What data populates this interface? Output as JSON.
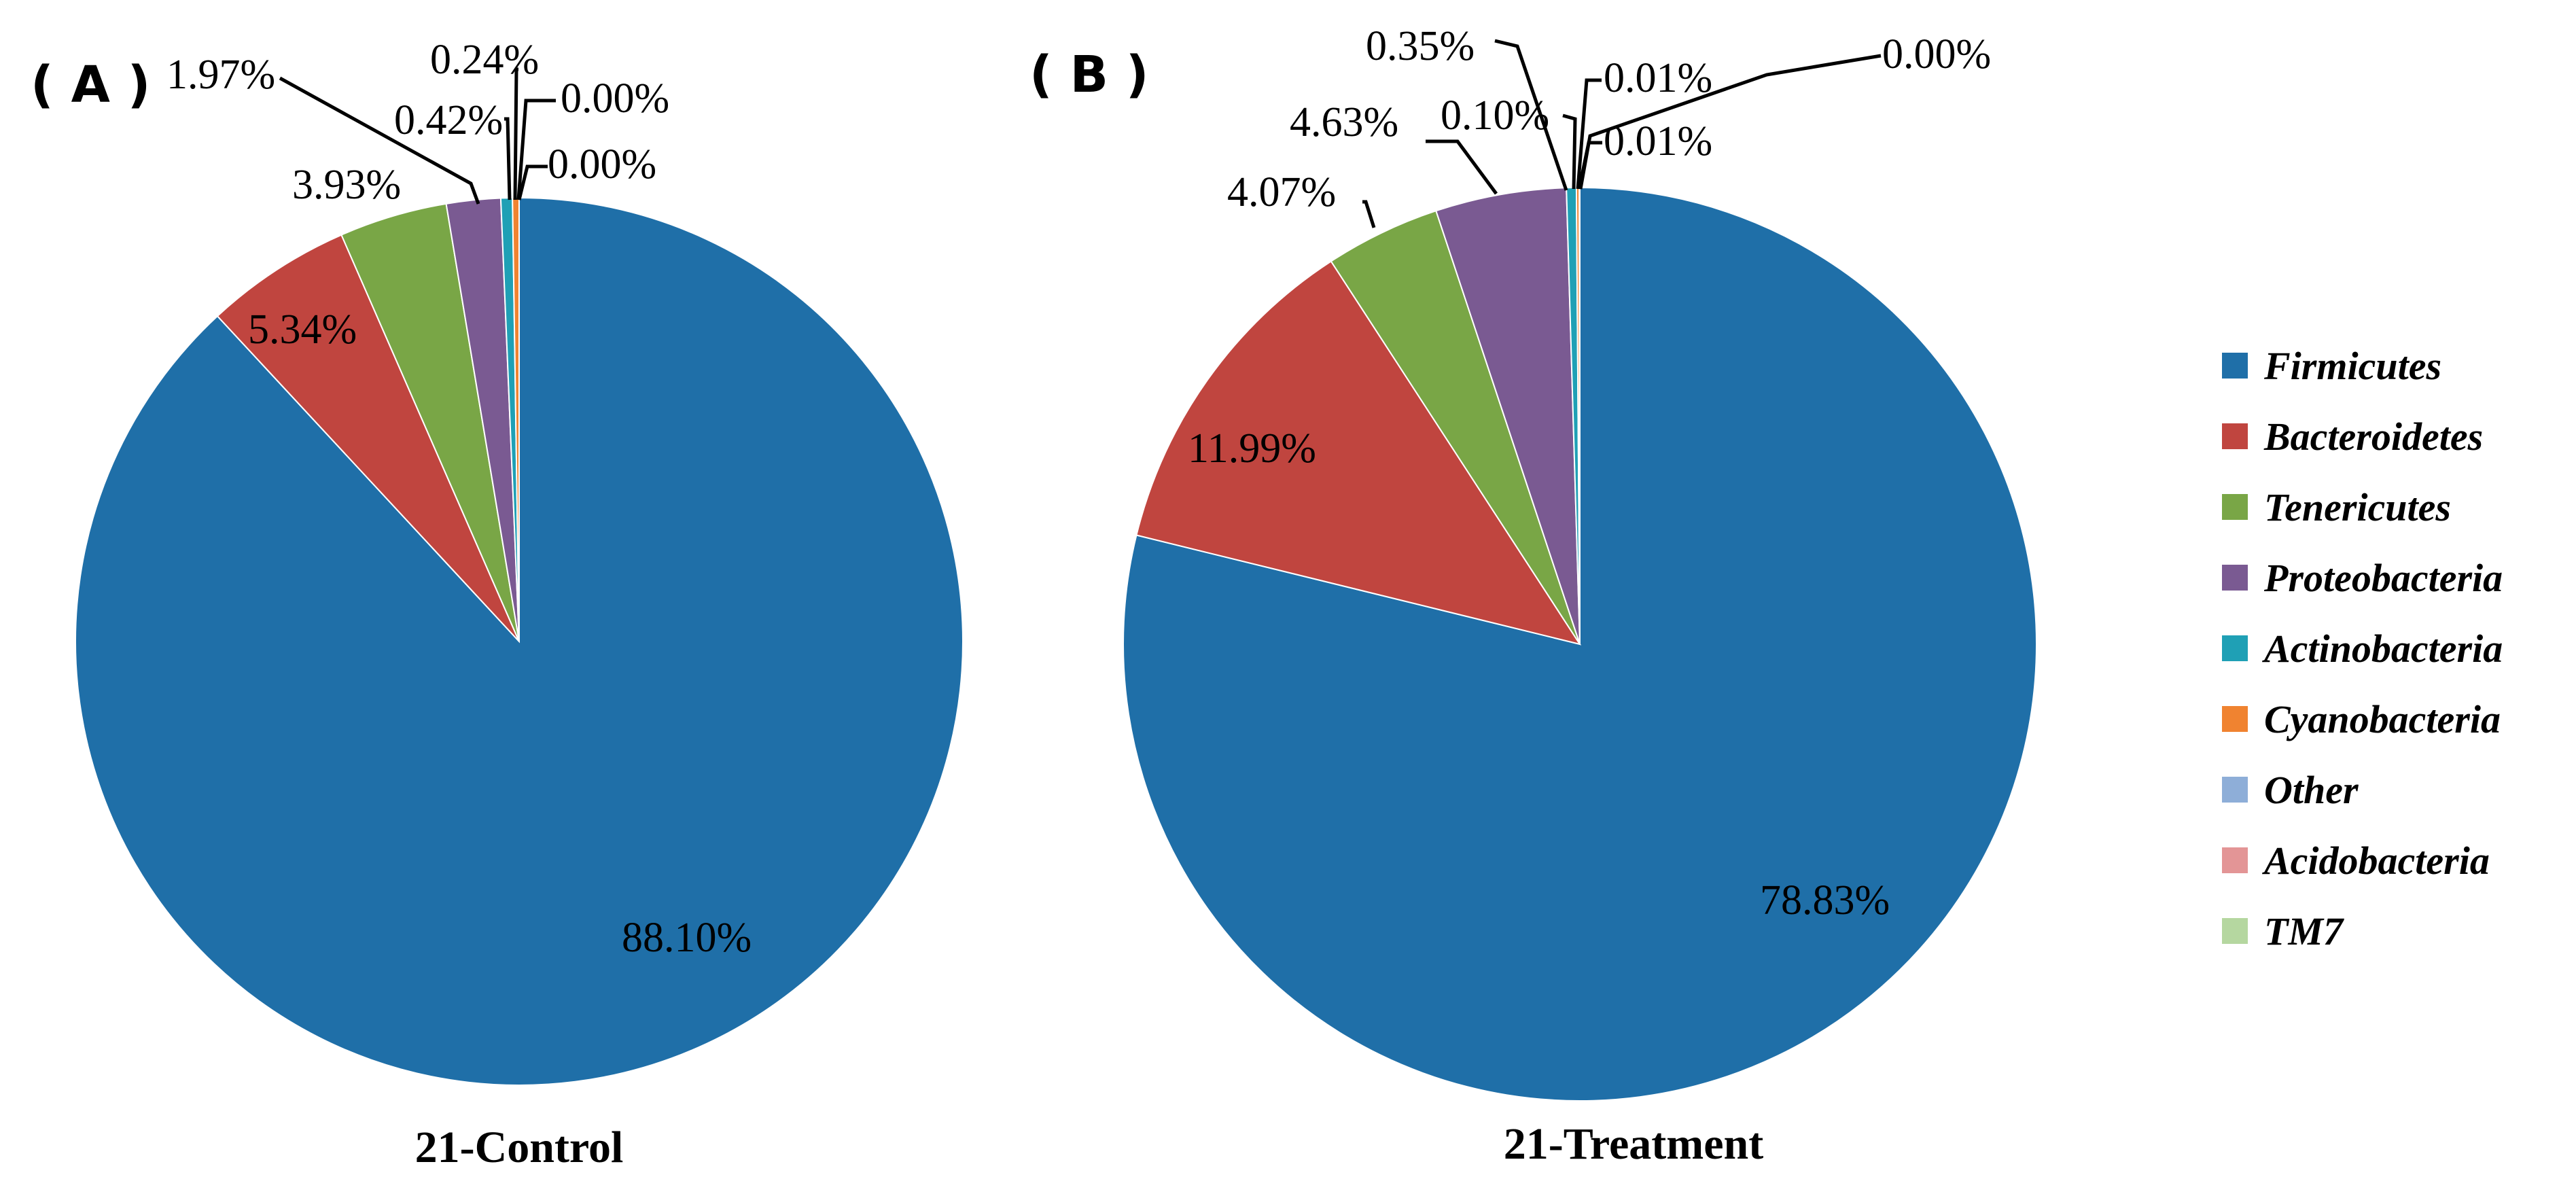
{
  "legend": {
    "items": [
      {
        "label": "Firmicutes",
        "color": "#1F6FA8"
      },
      {
        "label": "Bacteroidetes",
        "color": "#C0453F"
      },
      {
        "label": "Tenericutes",
        "color": "#79A646"
      },
      {
        "label": "Proteobacteria",
        "color": "#7A5A92"
      },
      {
        "label": "Actinobacteria",
        "color": "#1FA0B5"
      },
      {
        "label": "Cyanobacteria",
        "color": "#F08330"
      },
      {
        "label": "Other",
        "color": "#8EAED8"
      },
      {
        "label": "Acidobacteria",
        "color": "#E39596"
      },
      {
        "label": "TM7",
        "color": "#B5D7A0"
      }
    ]
  },
  "chart_data": [
    {
      "type": "pie",
      "panel_label": "( A )",
      "title": "21-Control",
      "start": "12 o'clock, clockwise",
      "slices": [
        {
          "label": "Firmicutes",
          "value": 88.1,
          "text": "88.10%"
        },
        {
          "label": "Bacteroidetes",
          "value": 5.34,
          "text": "5.34%"
        },
        {
          "label": "Tenericutes",
          "value": 3.93,
          "text": "3.93%"
        },
        {
          "label": "Proteobacteria",
          "value": 1.97,
          "text": "1.97%"
        },
        {
          "label": "Actinobacteria",
          "value": 0.42,
          "text": "0.42%"
        },
        {
          "label": "Cyanobacteria",
          "value": 0.24,
          "text": "0.24%"
        },
        {
          "label": "Other",
          "value": 0.0,
          "text": "0.00%"
        },
        {
          "label": "Acidobacteria",
          "value": 0.0,
          "text": "0.00%"
        }
      ]
    },
    {
      "type": "pie",
      "panel_label": "( B )",
      "title": "21-Treatment",
      "start": "12 o'clock, clockwise",
      "slices": [
        {
          "label": "Firmicutes",
          "value": 78.83,
          "text": "78.83%"
        },
        {
          "label": "Bacteroidetes",
          "value": 11.99,
          "text": "11.99%"
        },
        {
          "label": "Tenericutes",
          "value": 4.07,
          "text": "4.07%"
        },
        {
          "label": "Proteobacteria",
          "value": 4.63,
          "text": "4.63%"
        },
        {
          "label": "Actinobacteria",
          "value": 0.35,
          "text": "0.35%"
        },
        {
          "label": "Cyanobacteria",
          "value": 0.1,
          "text": "0.10%"
        },
        {
          "label": "Other",
          "value": 0.01,
          "text": "0.01%"
        },
        {
          "label": "Acidobacteria",
          "value": 0.01,
          "text": "0.01%"
        },
        {
          "label": "TM7",
          "value": 0.0,
          "text": "0.00%"
        }
      ]
    }
  ]
}
